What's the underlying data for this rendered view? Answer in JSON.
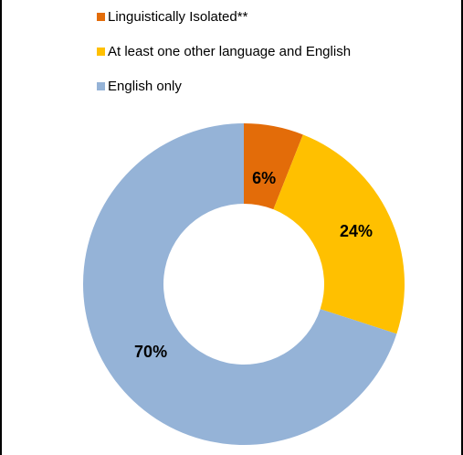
{
  "chart_data": {
    "type": "pie",
    "donut": true,
    "legend_position": "top",
    "categories": [
      "Linguistically Isolated**",
      "At least one other language and English",
      "English only"
    ],
    "values": [
      6,
      24,
      70
    ],
    "value_labels": [
      "6%",
      "24%",
      "70%"
    ],
    "colors": [
      "#e36c09",
      "#ffc000",
      "#95b3d7"
    ]
  }
}
